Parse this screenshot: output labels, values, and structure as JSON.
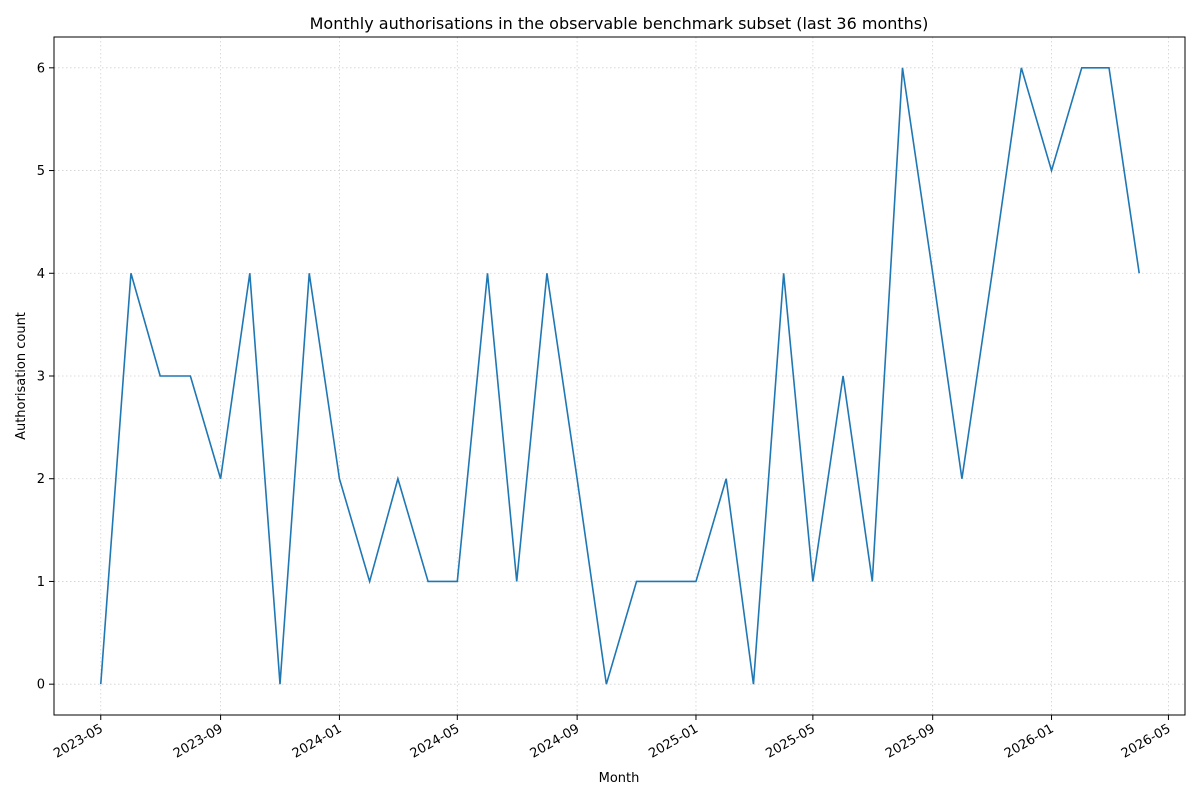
{
  "chart_data": {
    "type": "line",
    "title": "Monthly authorisations in the observable benchmark subset (last 36 months)",
    "xlabel": "Month",
    "ylabel": "Authorisation count",
    "x": [
      "2023-05",
      "2023-06",
      "2023-07",
      "2023-08",
      "2023-09",
      "2023-10",
      "2023-11",
      "2023-12",
      "2024-01",
      "2024-02",
      "2024-03",
      "2024-04",
      "2024-05",
      "2024-06",
      "2024-07",
      "2024-08",
      "2024-09",
      "2024-10",
      "2024-11",
      "2024-12",
      "2025-01",
      "2025-02",
      "2025-03",
      "2025-04",
      "2025-05",
      "2025-06",
      "2025-07",
      "2025-08",
      "2025-09",
      "2025-10",
      "2025-11",
      "2025-12",
      "2026-01",
      "2026-02",
      "2026-03",
      "2026-04"
    ],
    "series": [
      {
        "values": [
          0,
          4,
          3,
          3,
          2,
          4,
          0,
          4,
          2,
          1,
          2,
          1,
          1,
          4,
          1,
          4,
          2,
          0,
          1,
          1,
          1,
          2,
          0,
          4,
          1,
          3,
          1,
          6,
          4,
          2,
          4,
          6,
          5,
          6,
          6,
          4
        ],
        "color": "#1f77b4"
      }
    ],
    "x_ticks": [
      "2023-05",
      "2023-09",
      "2024-01",
      "2024-05",
      "2024-09",
      "2025-01",
      "2025-05",
      "2025-09",
      "2026-01",
      "2026-05"
    ],
    "y_ticks": [
      0,
      1,
      2,
      3,
      4,
      5,
      6
    ],
    "xlim": [
      "2023-03-14",
      "2026-05-18"
    ],
    "ylim": [
      -0.3,
      6.3
    ],
    "grid": true,
    "grid_style": "dotted"
  }
}
